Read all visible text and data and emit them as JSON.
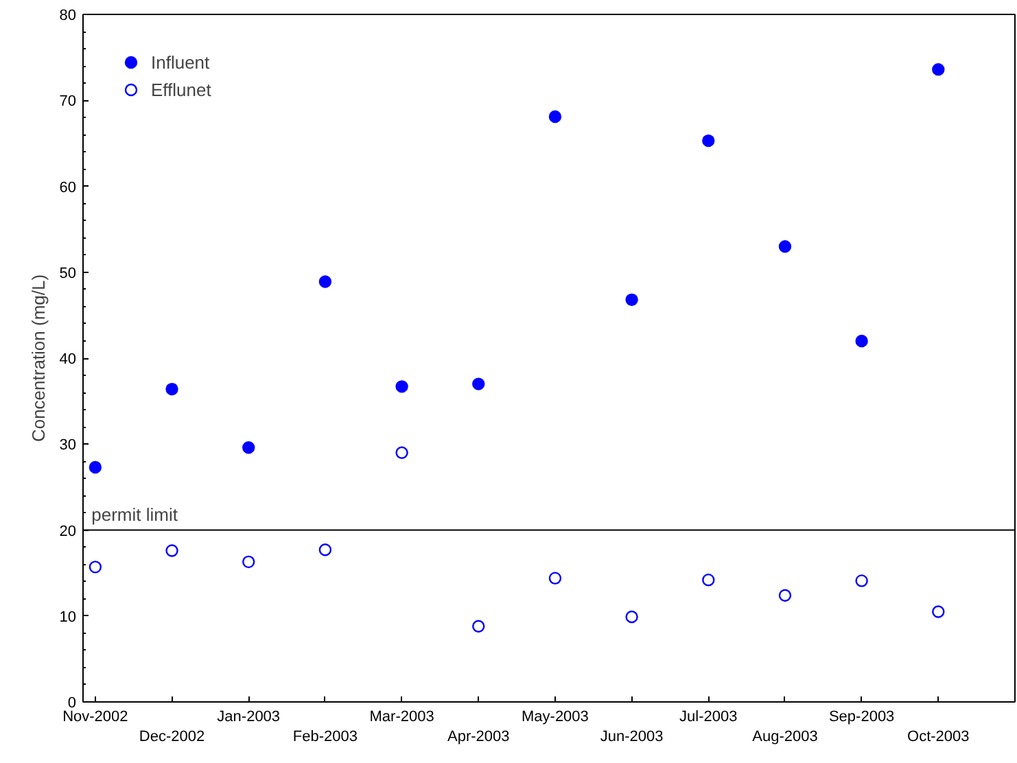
{
  "chart_data": {
    "type": "scatter",
    "ylabel": "Concentration (mg/L)",
    "categories": [
      "Nov-2002",
      "Dec-2002",
      "Jan-2003",
      "Feb-2003",
      "Mar-2003",
      "Apr-2003",
      "May-2003",
      "Jun-2003",
      "Jul-2003",
      "Aug-2003",
      "Sep-2003",
      "Oct-2003"
    ],
    "series": [
      {
        "name": "Influent",
        "color": "#0000ff",
        "marker": "circle",
        "values": [
          27.3,
          36.4,
          29.6,
          48.9,
          36.7,
          37.0,
          68.1,
          46.8,
          65.3,
          53.0,
          42.0,
          73.6
        ]
      },
      {
        "name": "Efflunet",
        "color": "#0000ff",
        "marker": "open_circle",
        "values": [
          15.7,
          17.6,
          16.3,
          17.7,
          29.0,
          8.8,
          14.4,
          9.9,
          14.2,
          12.4,
          14.1,
          10.5
        ]
      }
    ],
    "ylim": [
      0,
      80
    ],
    "yticks": [
      0,
      10,
      20,
      30,
      40,
      50,
      60,
      70,
      80
    ],
    "ref_lines": [
      {
        "axis": "y",
        "value": 20,
        "label": "permit limit",
        "color": "#000000"
      }
    ],
    "grid": false,
    "legend": "top left"
  }
}
